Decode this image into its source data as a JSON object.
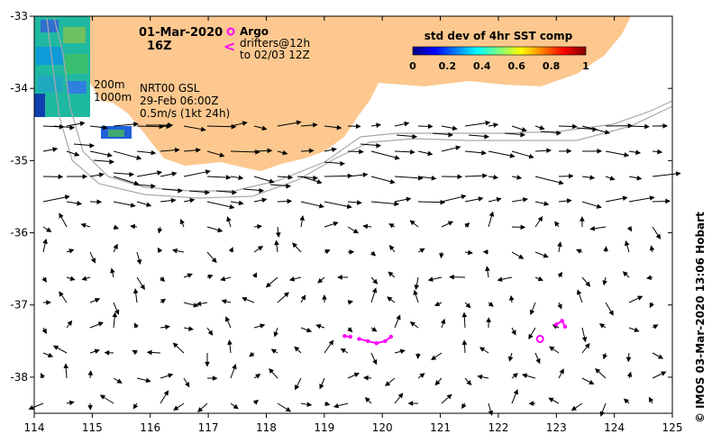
{
  "map": {
    "lon_range": [
      114,
      125
    ],
    "lat_range": [
      -38.5,
      -33
    ],
    "x_ticks": [
      "114",
      "115",
      "116",
      "117",
      "118",
      "119",
      "120",
      "121",
      "122",
      "123",
      "124",
      "125"
    ],
    "y_ticks": [
      "-33",
      "-34",
      "-35",
      "-36",
      "-37",
      "-38"
    ]
  },
  "annotations": {
    "date": "01-Mar-2020",
    "time": "16Z",
    "argo_label": "Argo",
    "drifters_label": "drifters@12h",
    "drifters_to": "to 02/03 12Z",
    "contour_200": "200m",
    "contour_1000": "1000m",
    "model": "NRT00 GSL",
    "model_time": "29-Feb 06:00Z",
    "scale_label": "0.5m/s (1kt 24h)",
    "credit": "© IMOS 03-Mar-2020 13:06 Hobart"
  },
  "colorbar": {
    "title": "std dev of 4hr SST comp",
    "ticks": [
      "0",
      "0.2",
      "0.4",
      "0.6",
      "0.8",
      "1"
    ],
    "colors": [
      "#00007f",
      "#0000ff",
      "#007fff",
      "#00ffff",
      "#7fff7f",
      "#ffff00",
      "#ff7f00",
      "#ff0000",
      "#7f0000"
    ]
  },
  "colors": {
    "land": "#fcc88f",
    "contour": "#a9a9a9",
    "drifter": "#ff00ff"
  },
  "argo_floats": [
    {
      "lon": 122.72,
      "lat": -37.47
    }
  ],
  "drifter_tracks": [
    [
      [
        119.35,
        -37.43
      ],
      [
        119.45,
        -37.44
      ]
    ],
    [
      [
        119.6,
        -37.47
      ],
      [
        119.75,
        -37.5
      ],
      [
        119.9,
        -37.53
      ],
      [
        120.05,
        -37.5
      ],
      [
        120.15,
        -37.44
      ]
    ],
    [
      [
        123.0,
        -37.27
      ],
      [
        123.1,
        -37.22
      ],
      [
        123.15,
        -37.3
      ]
    ]
  ]
}
